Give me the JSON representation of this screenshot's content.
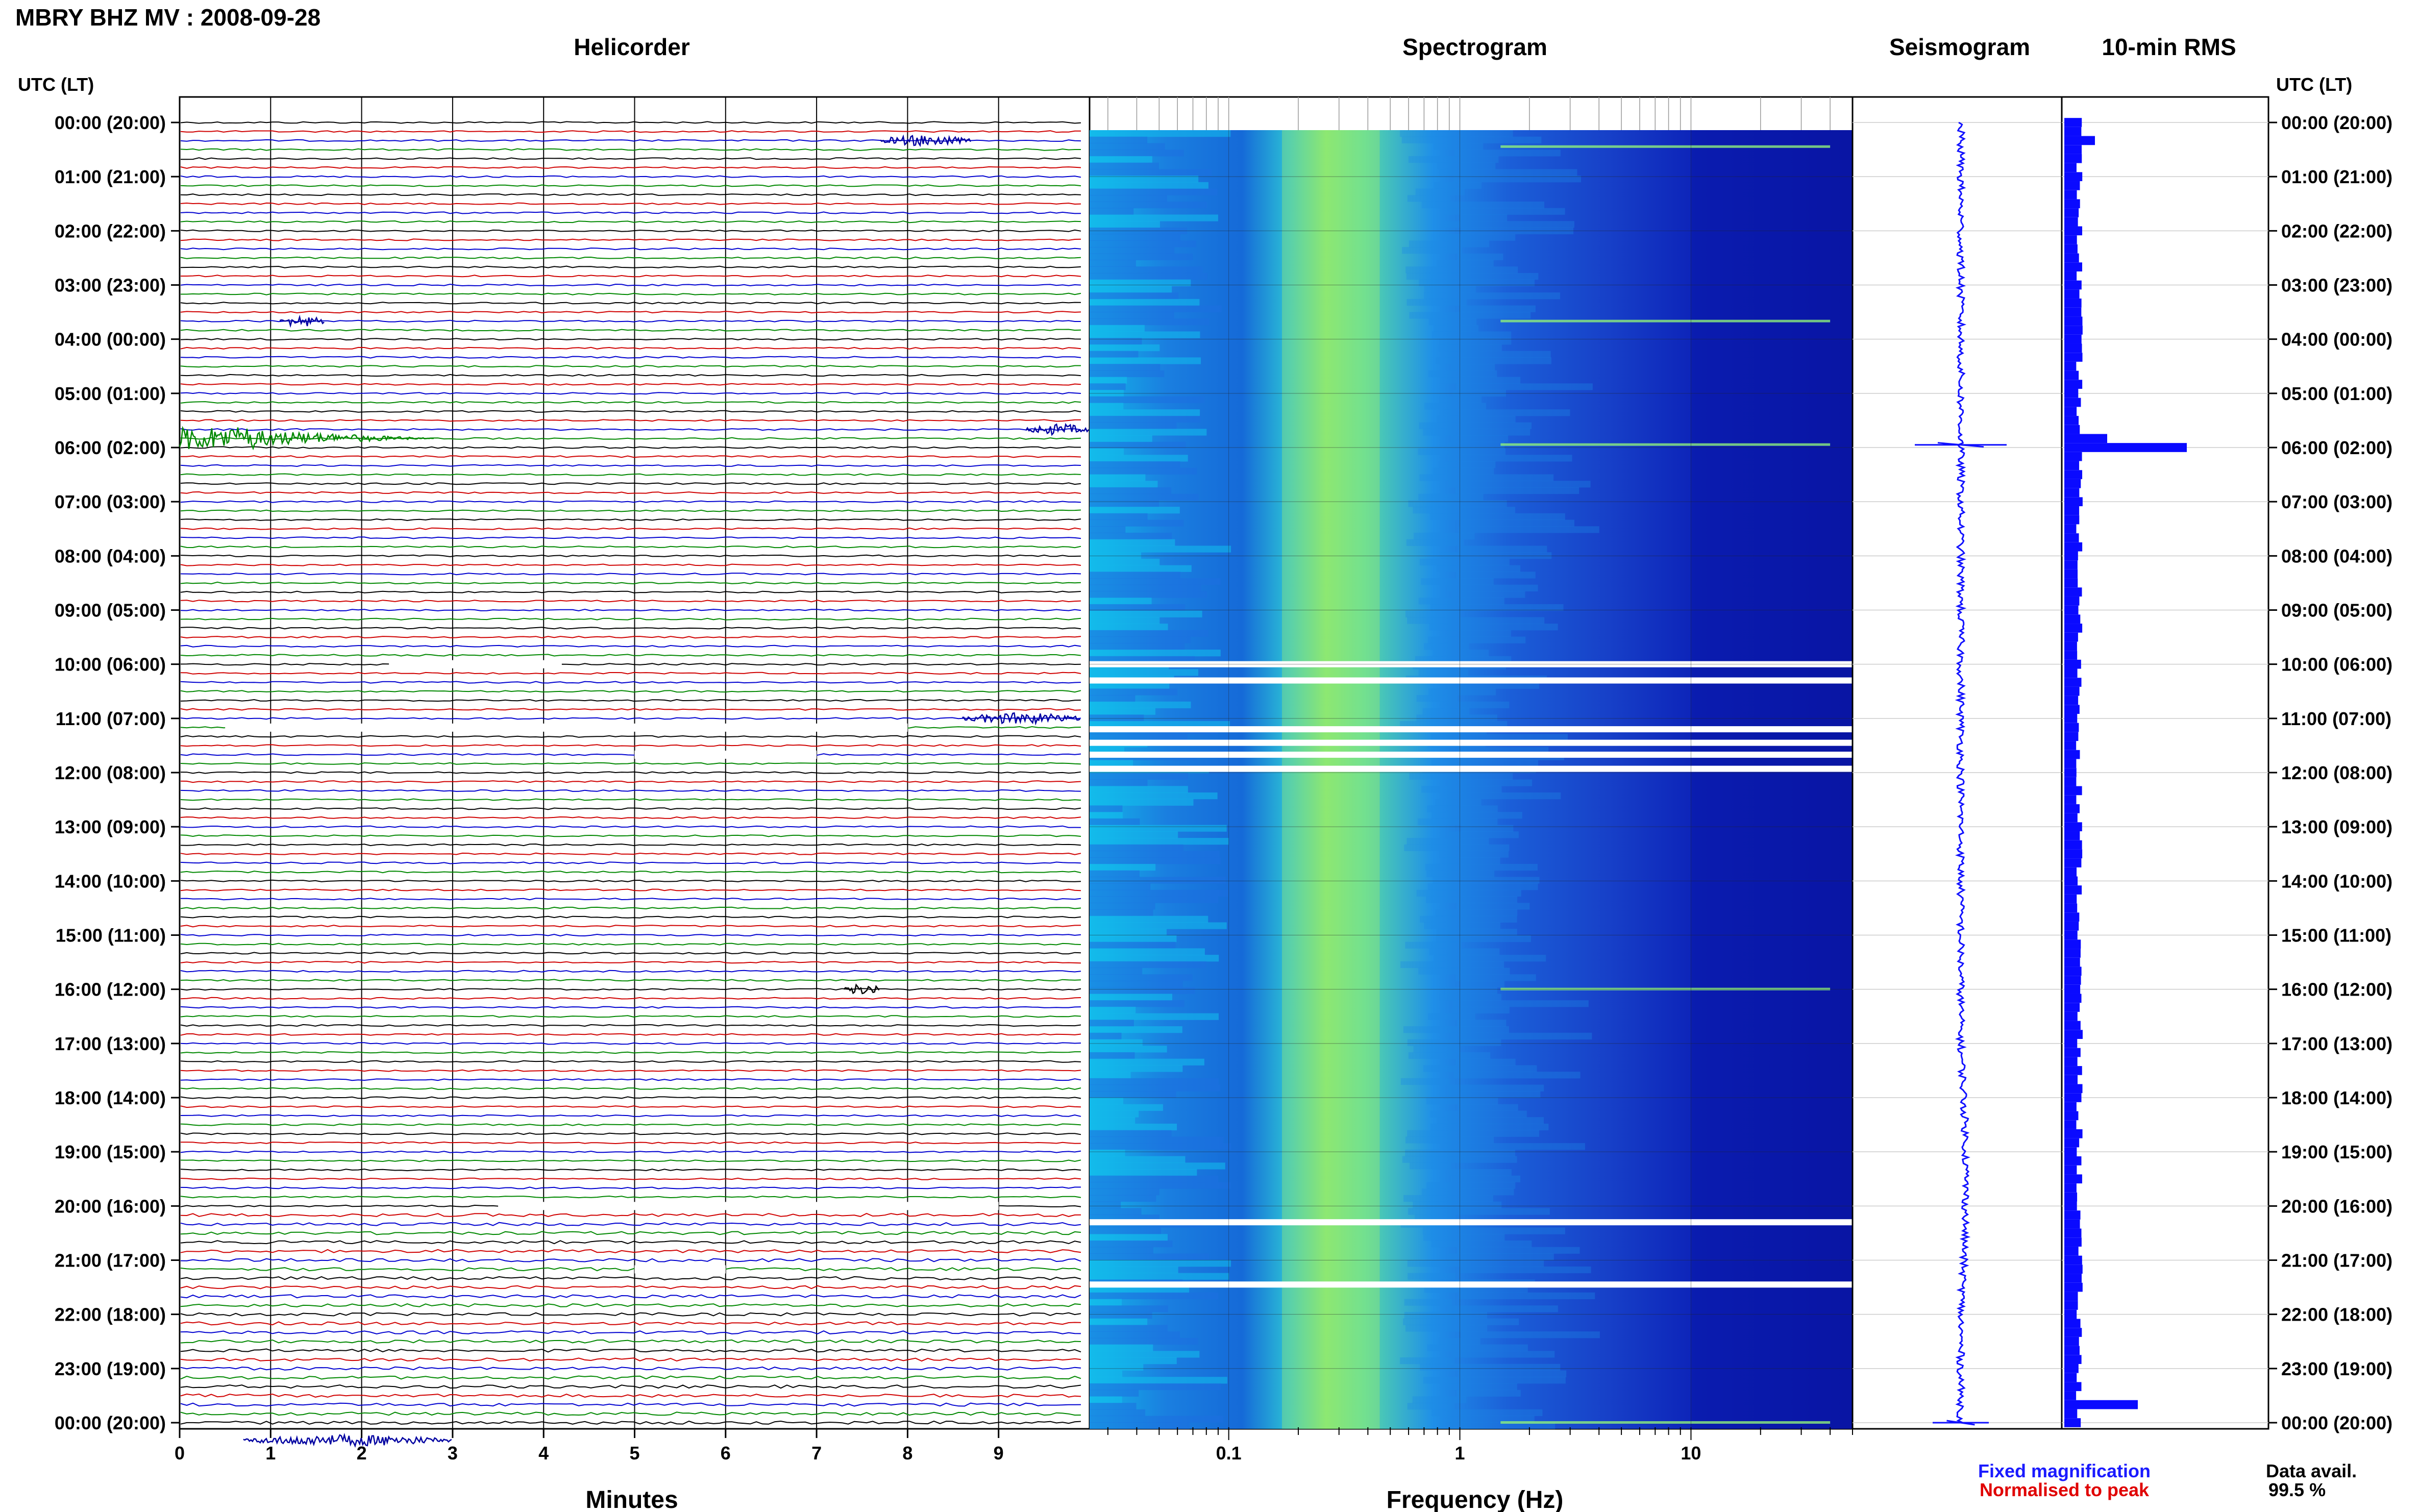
{
  "header": {
    "station_title": "MBRY BHZ MV : 2008-09-28",
    "utc_lt_label": "UTC (LT)"
  },
  "panels": {
    "helicorder": "Helicorder",
    "spectrogram": "Spectrogram",
    "seismogram": "Seismogram",
    "rms": "10-min RMS"
  },
  "time_labels": [
    "00:00 (20:00)",
    "01:00 (21:00)",
    "02:00 (22:00)",
    "03:00 (23:00)",
    "04:00 (00:00)",
    "05:00 (01:00)",
    "06:00 (02:00)",
    "07:00 (03:00)",
    "08:00 (04:00)",
    "09:00 (05:00)",
    "10:00 (06:00)",
    "11:00 (07:00)",
    "12:00 (08:00)",
    "13:00 (09:00)",
    "14:00 (10:00)",
    "15:00 (11:00)",
    "16:00 (12:00)",
    "17:00 (13:00)",
    "18:00 (14:00)",
    "19:00 (15:00)",
    "20:00 (16:00)",
    "21:00 (17:00)",
    "22:00 (18:00)",
    "23:00 (19:00)",
    "00:00 (20:00)"
  ],
  "legend": {
    "fixed": "Fixed magnification",
    "normalised": "Normalised to peak",
    "fixed_color": "#1a1aff",
    "normalised_color": "#e00000"
  },
  "availability": {
    "label": "Data avail.",
    "value": "99.5 %"
  },
  "colors": {
    "trace_cycle": [
      "#000000",
      "#d00000",
      "#0000d0",
      "#008800"
    ],
    "seismogram": "#1010ff",
    "rms": "#0a0aff",
    "spectrogram_bg": "#0a1aa8"
  },
  "chart_data": [
    {
      "type": "line",
      "panel": "helicorder",
      "title": "Helicorder",
      "xlabel": "Minutes",
      "xlim": [
        0,
        10
      ],
      "x_ticks": [
        0,
        1,
        2,
        3,
        4,
        5,
        6,
        7,
        8,
        9
      ],
      "hours": 24,
      "traces_per_hour": 6,
      "trace_color_cycle": [
        "black",
        "red",
        "blue",
        "green"
      ],
      "events": [
        {
          "hour": 0.33,
          "minute_start": 7.7,
          "minute_end": 8.7,
          "color": "blue"
        },
        {
          "hour": 3.67,
          "minute_start": 1.1,
          "minute_end": 1.6,
          "color": "blue"
        },
        {
          "hour": 5.83,
          "minute_start": 0.0,
          "minute_end": 2.8,
          "color": "green"
        },
        {
          "hour": 5.67,
          "minute_start": 9.3,
          "minute_end": 10.0,
          "color": "blue"
        },
        {
          "hour": 11.0,
          "minute_start": 8.6,
          "minute_end": 9.9,
          "color": "blue"
        },
        {
          "hour": 16.0,
          "minute_start": 7.3,
          "minute_end": 7.7,
          "color": "black"
        },
        {
          "hour": 24.33,
          "minute_start": 0.7,
          "minute_end": 3.0,
          "color": "blue"
        }
      ],
      "gaps": [
        {
          "hour": 10.0,
          "minute_start": 2.3,
          "minute_end": 4.2
        },
        {
          "hour": 11.17,
          "minute_start": 0.5,
          "minute_end": 8.0
        },
        {
          "hour": 11.67,
          "minute_start": 5.0,
          "minute_end": 7.0
        },
        {
          "hour": 20.0,
          "minute_start": 3.5,
          "minute_end": 9.0
        },
        {
          "hour": 21.17,
          "minute_start": 5.0,
          "minute_end": 6.0
        }
      ]
    },
    {
      "type": "heatmap",
      "panel": "spectrogram",
      "title": "Spectrogram",
      "xlabel": "Frequency (Hz)",
      "x_scale": "log",
      "xlim": [
        0.025,
        50
      ],
      "x_ticks": [
        0.1,
        1,
        10
      ],
      "x_tick_labels": [
        "0.1",
        "1",
        "10"
      ],
      "hours": 24,
      "peak_band_hz": [
        0.17,
        0.45
      ],
      "gap_hours": [
        10.0,
        10.3,
        11.2,
        11.45,
        11.67,
        11.93,
        20.3,
        21.45
      ]
    },
    {
      "type": "line",
      "panel": "seismogram",
      "title": "Seismogram",
      "events_hours": [
        5.95,
        24.0
      ]
    },
    {
      "type": "bar",
      "panel": "rms",
      "title": "10-min RMS",
      "orientation": "horizontal",
      "bin_minutes": 10,
      "baseline_value": 0.12,
      "peaks": [
        {
          "hour": 0.33,
          "value": 0.25
        },
        {
          "hour": 5.83,
          "value": 0.35
        },
        {
          "hour": 6.0,
          "value": 1.0
        },
        {
          "hour": 23.67,
          "value": 0.6
        }
      ]
    }
  ]
}
